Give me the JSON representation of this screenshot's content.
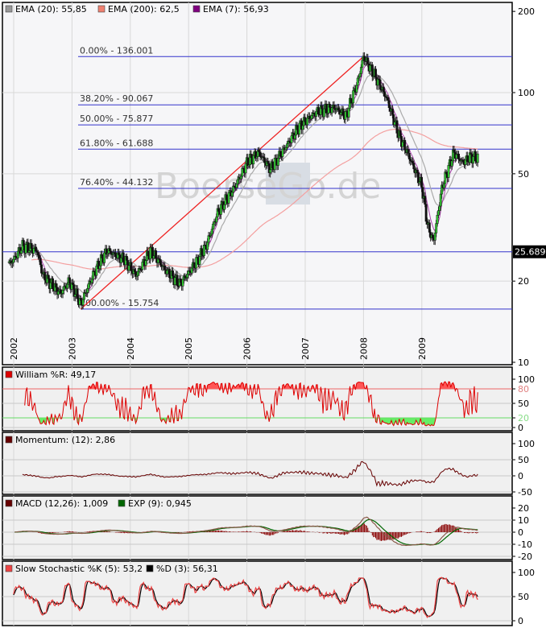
{
  "watermark": "BoerseGo.de",
  "main_legend": [
    {
      "label": "EMA (20): 55,85",
      "color": "#999999"
    },
    {
      "label": "EMA (200): 62,5",
      "color": "#f08070"
    },
    {
      "label": "EMA (7): 56,93",
      "color": "#800080"
    }
  ],
  "price_axis": {
    "scale": "log",
    "ticks": [
      "200",
      "100",
      "50",
      "20",
      "10"
    ],
    "tick_values": [
      200,
      100,
      50,
      20,
      10
    ]
  },
  "marker_label": {
    "text": "25.689",
    "value": 25.689
  },
  "years": [
    "2002",
    "2003",
    "2004",
    "2005",
    "2006",
    "2007",
    "2008",
    "2009"
  ],
  "fibonacci": [
    {
      "label": "0.00% - 136.001",
      "value": 136.001
    },
    {
      "label": "38.20% - 90.067",
      "value": 90.067
    },
    {
      "label": "50.00% - 75.877",
      "value": 75.877
    },
    {
      "label": "61.80% - 61.688",
      "value": 61.688
    },
    {
      "label": "76.40% - 44.132",
      "value": 44.132
    },
    {
      "label": "100.00% - 15.754",
      "value": 15.754
    }
  ],
  "indicators": {
    "williams": {
      "legend": "William %R: 49,17",
      "color": "#dd0000",
      "ticks": [
        "100",
        "80",
        "50",
        "20",
        "0"
      ],
      "tick_values": [
        100,
        80,
        50,
        20,
        0
      ],
      "upper": 80,
      "lower": 20
    },
    "momentum": {
      "legend": "Momentum: (12): 2,86",
      "color": "#660000",
      "ticks": [
        "100",
        "50",
        "0",
        "-50"
      ],
      "tick_values": [
        100,
        50,
        0,
        -50
      ]
    },
    "macd": {
      "legend": "MACD (12,26): 1,009",
      "color": "#660000",
      "legend2": "EXP (9): 0,945",
      "color2": "#006600",
      "ticks": [
        "20",
        "10",
        "0",
        "-10",
        "-20"
      ],
      "tick_values": [
        20,
        10,
        0,
        -10,
        -20
      ]
    },
    "stochastic": {
      "legend": "Slow Stochastic %K (5): 53,2",
      "color": "#ee4444",
      "legend2": "%D (3): 56,31",
      "color2": "#000000",
      "ticks": [
        "100",
        "50",
        "0"
      ],
      "tick_values": [
        100,
        50,
        0
      ]
    }
  },
  "chart_data": {
    "type": "candlestick",
    "x_unit": "year",
    "y_scale": "log",
    "ylim": [
      10,
      200
    ],
    "grid": true,
    "legend": "top-left",
    "price_keypoints": {
      "x": [
        2001.9,
        2002.0,
        2002.15,
        2002.4,
        2002.5,
        2002.8,
        2002.95,
        2003.15,
        2003.4,
        2003.6,
        2003.9,
        2004.1,
        2004.35,
        2004.6,
        2004.85,
        2005.1,
        2005.3,
        2005.5,
        2005.8,
        2006.0,
        2006.2,
        2006.4,
        2006.6,
        2006.9,
        2007.2,
        2007.5,
        2007.7,
        2007.9,
        2008.0,
        2008.2,
        2008.4,
        2008.6,
        2008.75,
        2009.0,
        2009.1,
        2009.2,
        2009.35,
        2009.55,
        2009.7,
        2009.85,
        2009.95
      ],
      "y": [
        23,
        24,
        27,
        26,
        21,
        18,
        20,
        16.5,
        22,
        26,
        24,
        21,
        26,
        22,
        19.5,
        23,
        27,
        36,
        45,
        55,
        60,
        52,
        60,
        75,
        85,
        88,
        82,
        110,
        136,
        115,
        95,
        70,
        60,
        45,
        32,
        28,
        45,
        60,
        55,
        58,
        57
      ]
    },
    "trend_line": {
      "from": [
        2003.15,
        15.754
      ],
      "to": [
        2008.0,
        136.001
      ]
    }
  }
}
